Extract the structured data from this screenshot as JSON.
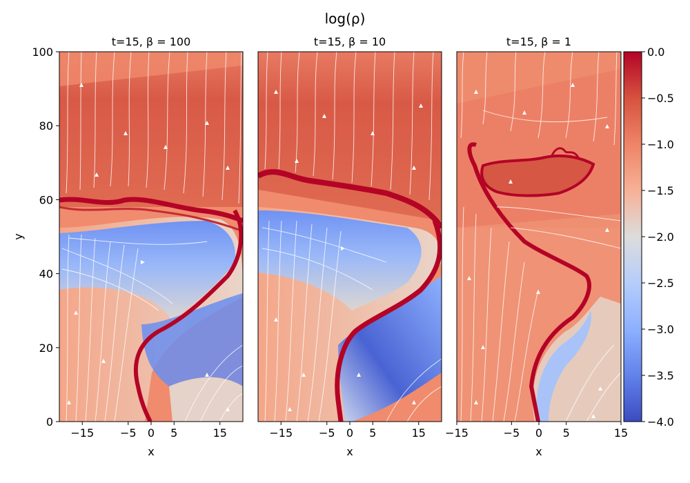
{
  "figure": {
    "title": "log(ρ)"
  },
  "colorbar": {
    "colormap": "coolwarm",
    "vmin": -4.0,
    "vmax": 0.0,
    "ticks": [
      "0.0",
      "−0.5",
      "−1.0",
      "−1.5",
      "−2.0",
      "−2.5",
      "−3.0",
      "−3.5",
      "−4.0"
    ],
    "tick_values": [
      0.0,
      -0.5,
      -1.0,
      -1.5,
      -2.0,
      -2.5,
      -3.0,
      -3.5,
      -4.0
    ]
  },
  "chart_data": [
    {
      "type": "heatmap",
      "title": "t=15, β = 100",
      "xlabel": "x",
      "ylabel": "y",
      "xlim": [
        -20,
        20
      ],
      "ylim": [
        0,
        100
      ],
      "xticks": [
        -15,
        -5,
        0,
        5,
        15
      ],
      "yticks": [
        0,
        20,
        40,
        60,
        80,
        100
      ],
      "overlay": "white streamlines with arrows"
    },
    {
      "type": "heatmap",
      "title": "t=15, β = 10",
      "xlabel": "x",
      "ylabel": "",
      "xlim": [
        -20,
        20
      ],
      "ylim": [
        0,
        100
      ],
      "xticks": [
        -15,
        -5,
        0,
        5,
        15
      ],
      "yticks": [],
      "overlay": "white streamlines with arrows"
    },
    {
      "type": "heatmap",
      "title": "t=15, β = 1",
      "xlabel": "x",
      "ylabel": "",
      "xlim": [
        -15,
        15
      ],
      "ylim": [
        0,
        100
      ],
      "xticks": [
        -15,
        -5,
        0,
        5,
        15
      ],
      "yticks": [],
      "overlay": "white streamlines with arrows"
    }
  ],
  "colors": {
    "ambient": "#f08b6e",
    "upper": "#dc5d4a",
    "sheet": "#b40426",
    "cavity": "#6f92f3",
    "cavity_light": "#aec8fb",
    "neutral": "#dddcdc",
    "streamline": "#ffffff"
  }
}
